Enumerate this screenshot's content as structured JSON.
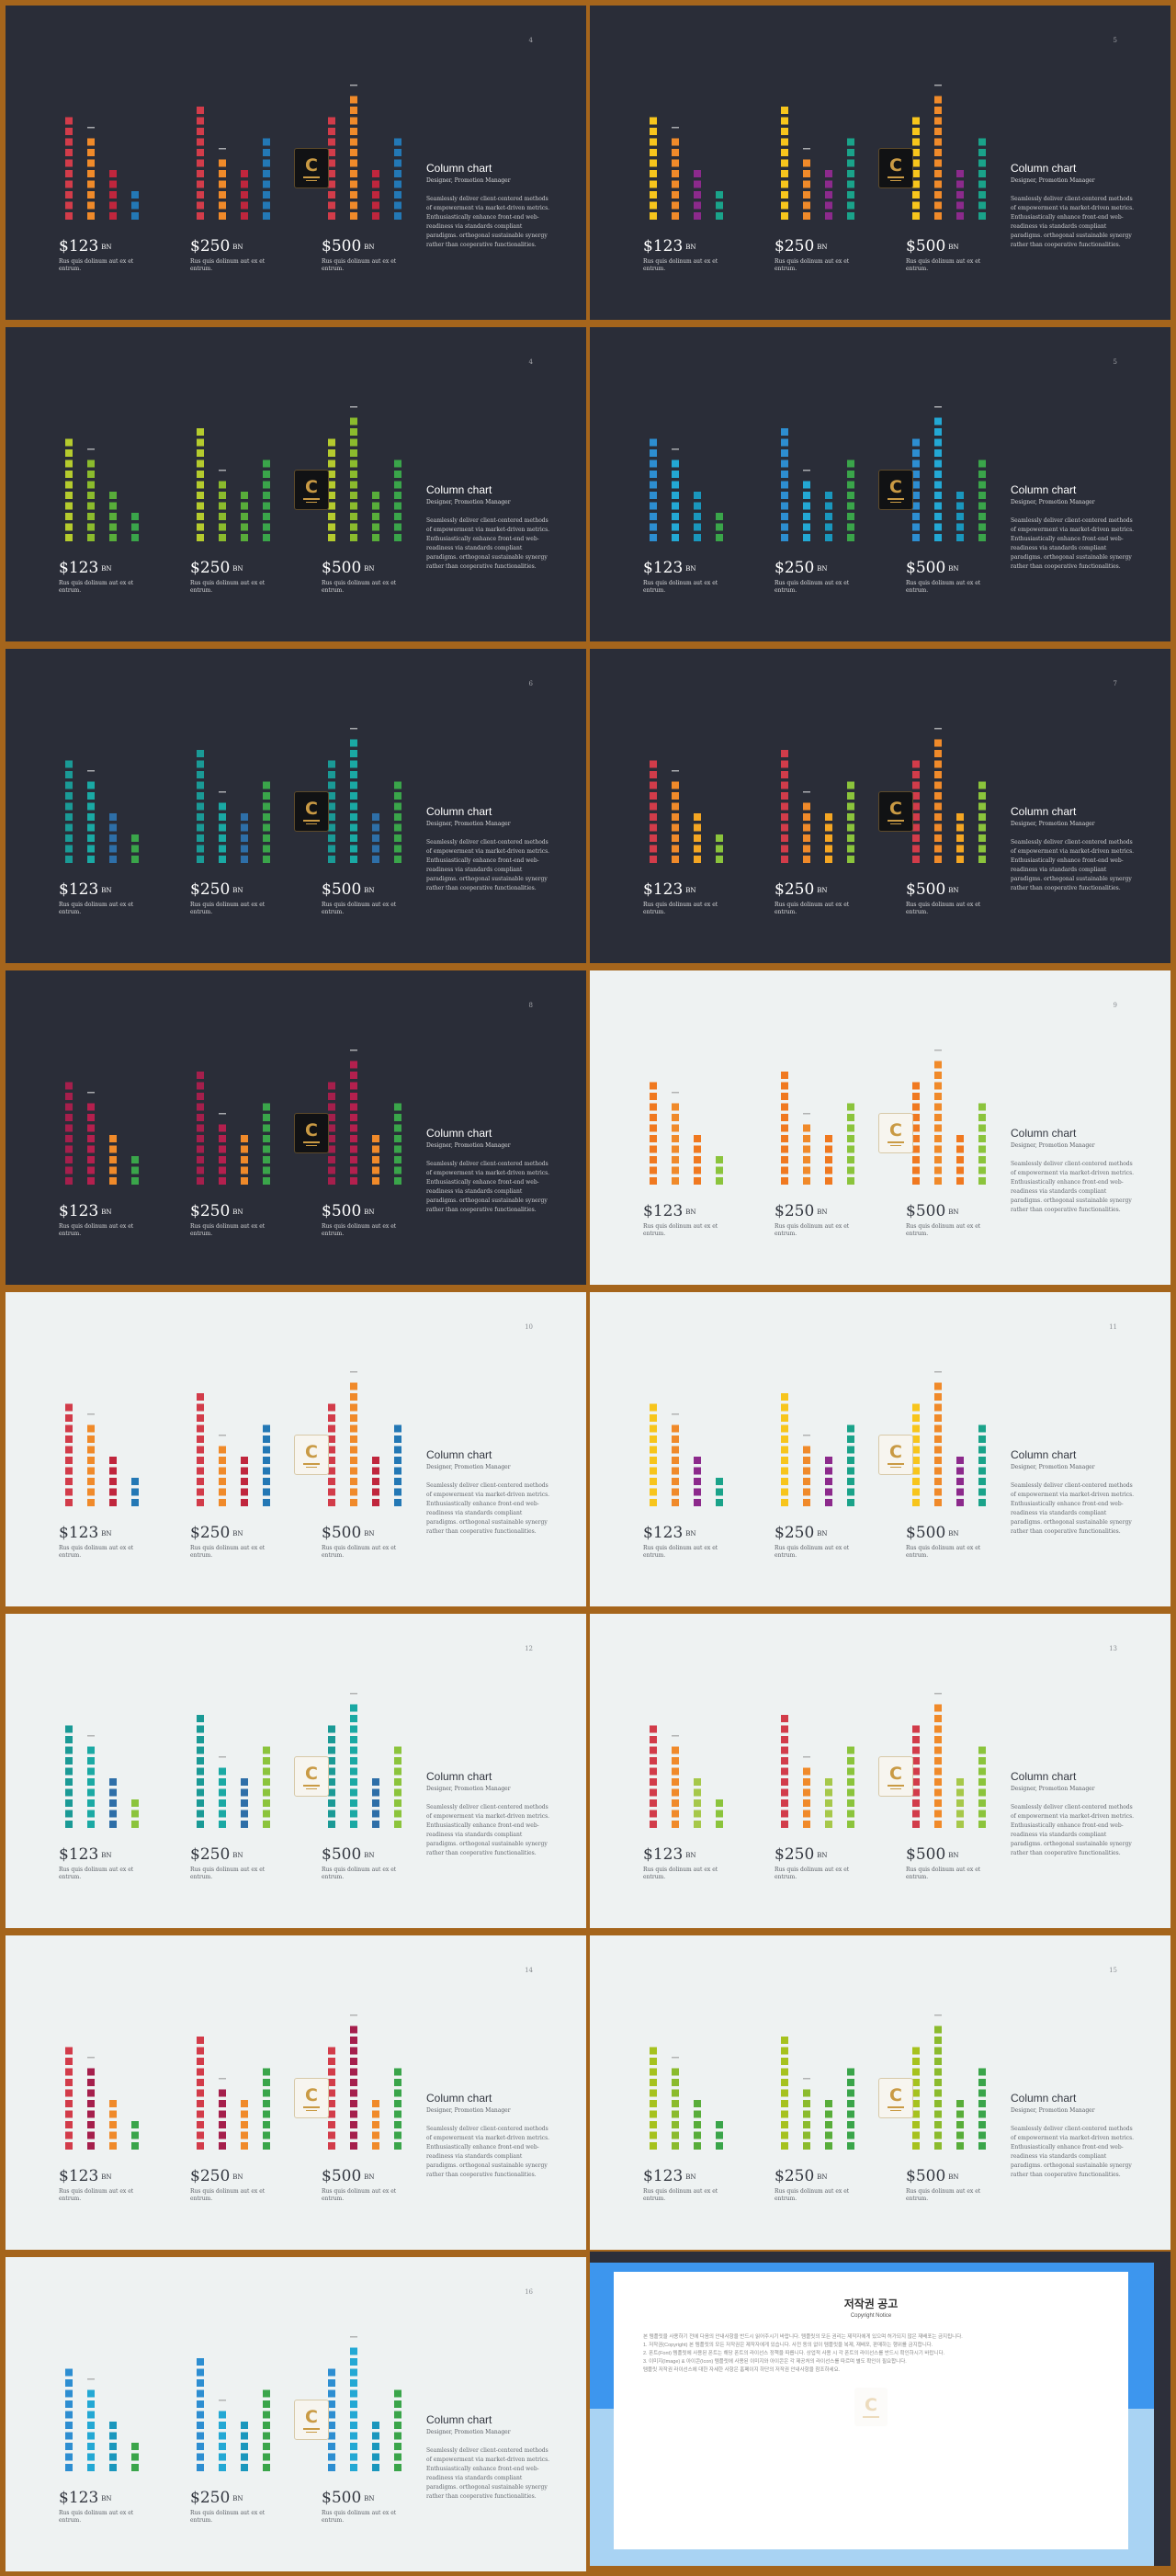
{
  "common": {
    "values": [
      {
        "amount": "$123",
        "unit": "BN",
        "caption": "Rus quis dolinum aut ex et entrum."
      },
      {
        "amount": "$250",
        "unit": "BN",
        "caption": "Rus quis dolinum aut ex et entrum."
      },
      {
        "amount": "$500",
        "unit": "BN",
        "caption": "Rus quis dolinum aut ex et entrum."
      }
    ],
    "title": "Column chart",
    "subtitle": "Designer, Promotion Manager",
    "body": "Seamlessly deliver client-centered methods of empowerment via market-driven metrics. Enthusiastically enhance front-end web-readiness via standards compliant paradigms. orthogonal sustainable synergy rather than cooperative functionalities.",
    "logo_letter": "C"
  },
  "slides": [
    {
      "page": "4",
      "theme": "dark",
      "palette": [
        "#d23c4a",
        "#f08a2a",
        "#c0263d",
        "#2378b5"
      ]
    },
    {
      "page": "5",
      "theme": "dark",
      "palette": [
        "#f7c51c",
        "#f08a2a",
        "#8c2a8c",
        "#1aa38a"
      ]
    },
    {
      "page": "4",
      "theme": "dark",
      "palette": [
        "#b5cb2e",
        "#8bbb2d",
        "#58ad3a",
        "#3aa54a"
      ]
    },
    {
      "page": "5",
      "theme": "dark",
      "palette": [
        "#2d8ed1",
        "#23a8d4",
        "#1a97bd",
        "#3aa54a"
      ]
    },
    {
      "page": "6",
      "theme": "dark",
      "palette": [
        "#1a9a96",
        "#1aa9a4",
        "#2e6fa8",
        "#3aa54a"
      ]
    },
    {
      "page": "7",
      "theme": "dark",
      "palette": [
        "#d23c4a",
        "#f08a2a",
        "#f4a623",
        "#8bc43c"
      ]
    },
    {
      "page": "8",
      "theme": "dark",
      "palette": [
        "#a51f4c",
        "#b4204e",
        "#f08a2a",
        "#3aa54a"
      ]
    },
    {
      "page": "9",
      "theme": "light",
      "palette": [
        "#f07920",
        "#f08a2a",
        "#f07920",
        "#8bc43c"
      ]
    },
    {
      "page": "10",
      "theme": "light",
      "palette": [
        "#d23c4a",
        "#f08a2a",
        "#c0263d",
        "#2378b5"
      ]
    },
    {
      "page": "11",
      "theme": "light",
      "palette": [
        "#f7c51c",
        "#f08a2a",
        "#8c2a8c",
        "#1aa38a"
      ]
    },
    {
      "page": "12",
      "theme": "light",
      "palette": [
        "#1a9a96",
        "#1aa9a4",
        "#2e6fa8",
        "#8bc43c"
      ]
    },
    {
      "page": "13",
      "theme": "light",
      "palette": [
        "#d23c4a",
        "#f08a2a",
        "#a6c84a",
        "#8bc43c"
      ]
    },
    {
      "page": "14",
      "theme": "light",
      "palette": [
        "#d23c4a",
        "#a51f4c",
        "#f08a2a",
        "#3aa54a"
      ]
    },
    {
      "page": "15",
      "theme": "light",
      "palette": [
        "#a6c21e",
        "#8bbb2d",
        "#58ad3a",
        "#3aa54a"
      ]
    },
    {
      "page": "16",
      "theme": "light",
      "palette": [
        "#2d8ed1",
        "#23a8d4",
        "#1a97bd",
        "#3aa54a"
      ]
    }
  ],
  "chart_data": {
    "type": "bar",
    "groups": [
      "$123",
      "$250",
      "$500"
    ],
    "series_per_group": [
      [
        10,
        8,
        5,
        3
      ],
      [
        11,
        6,
        5,
        8
      ],
      [
        10,
        12,
        5,
        8
      ]
    ]
  },
  "copyright": {
    "title": "저작권 공고",
    "subtitle": "Copyright Notice",
    "paragraphs": [
      "본 템플릿을 사용하기 전에 다음의 안내사항을 반드시 읽어주시기 바랍니다. 템플릿의 모든 권리는 제작자에게 있으며 허가되지 않은 재배포는 금지됩니다.",
      "1. 저작권(Copyright) 본 템플릿의 모든 저작권은 제작자에게 있습니다. 사전 동의 없이 템플릿을 복제, 재배포, 판매하는 행위를 금지합니다.",
      "2. 폰트(Font) 템플릿에 사용된 폰트는 해당 폰트의 라이선스 정책을 따릅니다. 상업적 사용 시 각 폰트의 라이선스를 반드시 확인하시기 바랍니다.",
      "3. 이미지(Image) & 아이콘(Icon) 템플릿에 사용된 이미지와 아이콘은 각 제공처의 라이선스를 따르며 별도 확인이 필요합니다.",
      "템플릿 저작권 라이선스에 대한 자세한 사항은 홈페이지 하단의 저작권 안내사항을 참조하세요."
    ]
  }
}
